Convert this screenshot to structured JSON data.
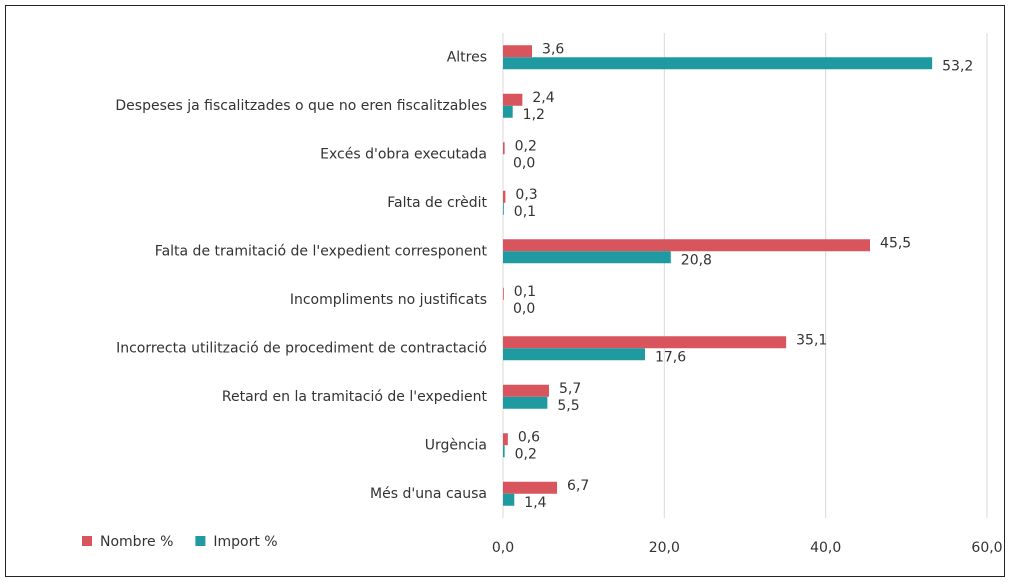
{
  "chart_data": {
    "type": "hbar",
    "categories": [
      "Altres",
      "Despeses ja fiscalitzades o que no eren fiscalitzables",
      "Excés d'obra executada",
      "Falta de crèdit",
      "Falta de tramitació de l'expedient corresponent",
      "Incompliments no justificats",
      "Incorrecta utilització de procediment de contractació",
      "Retard en la tramitació de l'expedient",
      "Urgència",
      "Més d'una causa"
    ],
    "series": [
      {
        "name": "Nombre %",
        "color": "#d9555e",
        "values": [
          3.6,
          2.4,
          0.2,
          0.3,
          45.5,
          0.1,
          35.1,
          5.7,
          0.6,
          6.7
        ],
        "value_labels": [
          "3,6",
          "2,4",
          "0,2",
          "0,3",
          "45,5",
          "0,1",
          "35,1",
          "5,7",
          "0,6",
          "6,7"
        ]
      },
      {
        "name": "Import %",
        "color": "#1e9aa0",
        "values": [
          53.2,
          1.2,
          0.0,
          0.1,
          20.8,
          0.0,
          17.6,
          5.5,
          0.2,
          1.4
        ],
        "value_labels": [
          "53,2",
          "1,2",
          "0,0",
          "0,1",
          "20,8",
          "0,0",
          "17,6",
          "5,5",
          "0,2",
          "1,4"
        ]
      }
    ],
    "xlim": [
      0,
      60
    ],
    "xticks": [
      {
        "value": 0,
        "label": "0,0"
      },
      {
        "value": 20,
        "label": "20,0"
      },
      {
        "value": 40,
        "label": "40,0"
      },
      {
        "value": 60,
        "label": "60,0"
      }
    ],
    "grid": true,
    "legend": "bottom-left"
  }
}
